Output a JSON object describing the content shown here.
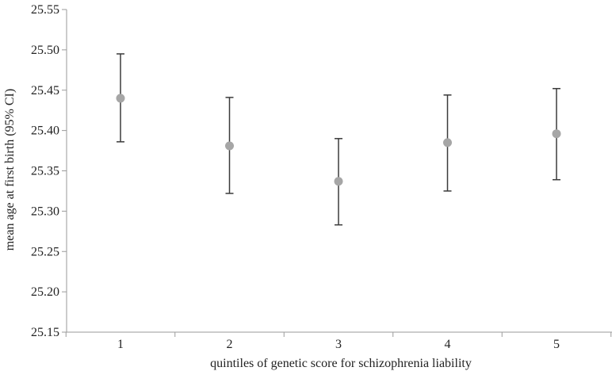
{
  "chart_data": {
    "type": "scatter",
    "title": "",
    "xlabel": "quintiles of genetic score for schizophrenia liability",
    "ylabel": "mean age at first birth (95% CI)",
    "categories": [
      "1",
      "2",
      "3",
      "4",
      "5"
    ],
    "values": [
      25.44,
      25.381,
      25.337,
      25.385,
      25.396
    ],
    "ci_lower": [
      25.386,
      25.322,
      25.283,
      25.325,
      25.339
    ],
    "ci_upper": [
      25.495,
      25.441,
      25.39,
      25.444,
      25.452
    ],
    "ylim": [
      25.15,
      25.55
    ],
    "yticks": [
      "25.15",
      "25.20",
      "25.25",
      "25.30",
      "25.35",
      "25.40",
      "25.45",
      "25.50",
      "25.55"
    ],
    "grid": false,
    "legend": "none",
    "colors": {
      "marker": "#a6a6a6",
      "errorbar": "#3a3a3a",
      "axis": "#9a9a9a"
    }
  }
}
